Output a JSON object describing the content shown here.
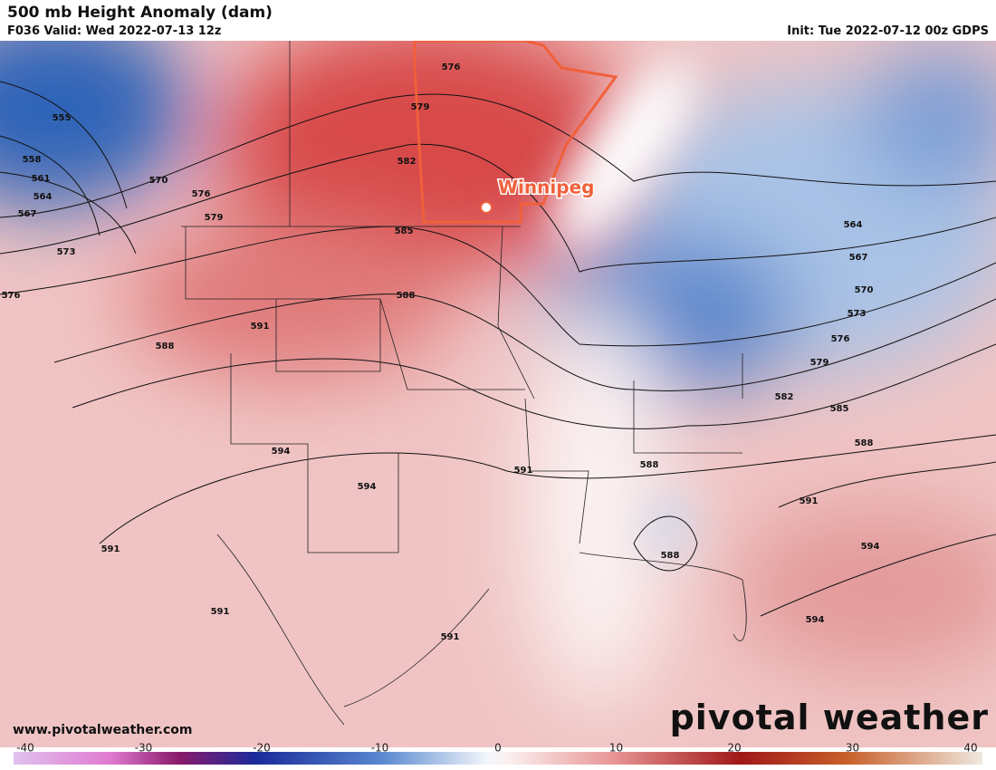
{
  "header": {
    "title": "500 mb Height Anomaly (dam)",
    "valid": "F036 Valid: Wed 2022-07-13 12z",
    "init": "Init: Tue 2022-07-12 00z GDPS"
  },
  "map": {
    "city": "Winnipeg",
    "contour_labels": [
      555,
      558,
      561,
      564,
      567,
      573,
      576,
      570,
      576,
      579,
      576,
      579,
      582,
      585,
      588,
      591,
      588,
      594,
      594,
      591,
      591,
      591,
      591,
      588,
      588,
      564,
      567,
      570,
      573,
      576,
      579,
      582,
      585,
      588,
      591,
      594,
      594
    ]
  },
  "footer": {
    "website": "www.pivotalweather.com",
    "logo": "pivotal weather"
  },
  "colorbar": {
    "ticks": [
      -40,
      -30,
      -20,
      -10,
      0,
      10,
      20,
      30,
      40
    ]
  }
}
